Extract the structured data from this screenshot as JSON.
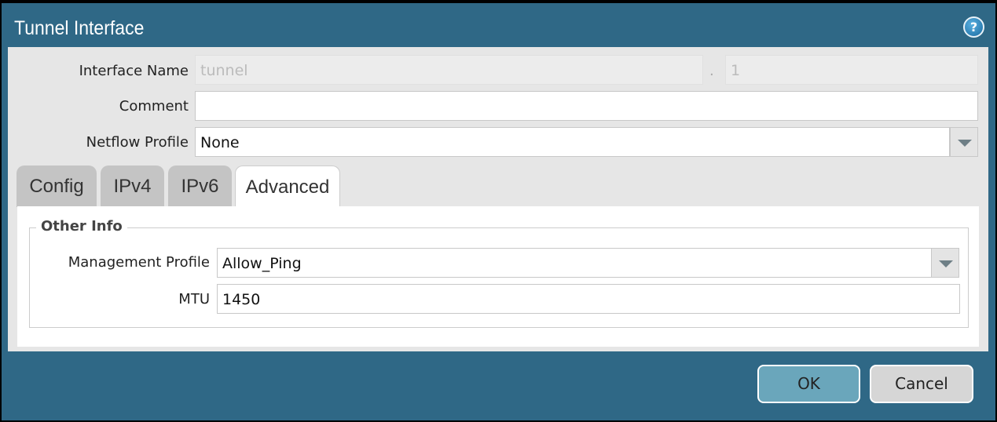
{
  "dialog": {
    "title": "Tunnel Interface",
    "help_icon": "help-icon"
  },
  "form": {
    "interface_name_label": "Interface Name",
    "interface_name_value": "tunnel",
    "separator": ".",
    "interface_number": "1",
    "comment_label": "Comment",
    "comment_value": "",
    "netflow_label": "Netflow Profile",
    "netflow_value": "None"
  },
  "tabs": [
    {
      "label": "Config"
    },
    {
      "label": "IPv4"
    },
    {
      "label": "IPv6"
    },
    {
      "label": "Advanced",
      "active": true
    }
  ],
  "advanced": {
    "section_title": "Other Info",
    "mgmt_label": "Management Profile",
    "mgmt_value": "Allow_Ping",
    "mtu_label": "MTU",
    "mtu_value": "1450"
  },
  "buttons": {
    "ok": "OK",
    "cancel": "Cancel"
  },
  "colors": {
    "header": "#2f6886",
    "ok_button": "#6aa6bb",
    "cancel_button": "#d6d6d6"
  }
}
